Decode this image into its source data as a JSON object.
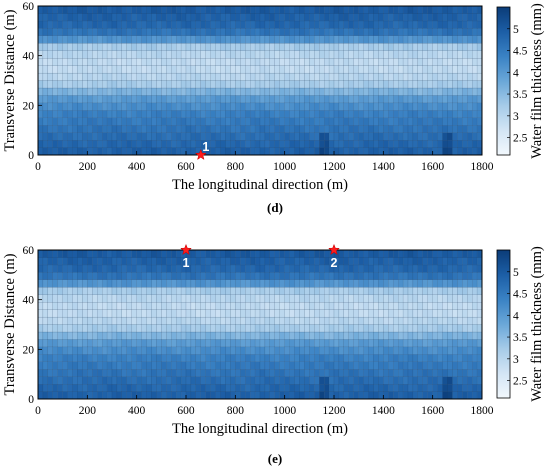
{
  "chart_data": [
    {
      "type": "heatmap",
      "panel_label": "(d)",
      "xlabel": "The longitudinal direction (m)",
      "ylabel": "Transverse  Distance (m)",
      "xlim": [
        0,
        1800
      ],
      "ylim": [
        0,
        60
      ],
      "xticks": [
        0,
        200,
        400,
        600,
        800,
        1000,
        1200,
        1400,
        1600,
        1800
      ],
      "yticks": [
        0,
        20,
        40,
        60
      ],
      "colorbar": {
        "label": "Water film thickness (mm)",
        "range": [
          2.1,
          5.5
        ],
        "ticks": [
          2.5,
          3,
          3.5,
          4,
          4.5,
          5
        ],
        "tick_labels": [
          "2.5",
          "3",
          "3.5",
          "4",
          "4.5",
          "5"
        ],
        "colormap": [
          "#f2f8fd",
          "#d3e5f5",
          "#a6cbe8",
          "#6aa7d8",
          "#3a82c4",
          "#1c5ea6",
          "#0b3c78"
        ]
      },
      "transverse_profile_mm": {
        "y": [
          1.5,
          4.5,
          7.5,
          10.5,
          13.5,
          16.5,
          19.5,
          22.5,
          25.5,
          28.5,
          31.5,
          34.5,
          37.5,
          40.5,
          43.5,
          46.5,
          49.5,
          52.5,
          55.5,
          58.5
        ],
        "value": [
          4.9,
          4.8,
          4.7,
          4.6,
          4.5,
          4.4,
          4.2,
          4.0,
          3.6,
          3.2,
          3.0,
          2.9,
          2.9,
          3.0,
          3.2,
          4.1,
          4.6,
          4.8,
          4.9,
          5.0
        ]
      },
      "markers": [
        {
          "label": "1",
          "x": 660,
          "y": 0
        }
      ]
    },
    {
      "type": "heatmap",
      "panel_label": "(e)",
      "xlabel": "The longitudinal direction (m)",
      "ylabel": "Transverse  Distance (m)",
      "xlim": [
        0,
        1800
      ],
      "ylim": [
        0,
        60
      ],
      "xticks": [
        0,
        200,
        400,
        600,
        800,
        1000,
        1200,
        1400,
        1600,
        1800
      ],
      "yticks": [
        0,
        20,
        40,
        60
      ],
      "colorbar": {
        "label": "Water film thickness (mm)",
        "range": [
          2.1,
          5.5
        ],
        "ticks": [
          2.5,
          3,
          3.5,
          4,
          4.5,
          5
        ],
        "tick_labels": [
          "2.5",
          "3",
          "3.5",
          "4",
          "4.5",
          "5"
        ],
        "colormap": [
          "#f2f8fd",
          "#d3e5f5",
          "#a6cbe8",
          "#6aa7d8",
          "#3a82c4",
          "#1c5ea6",
          "#0b3c78"
        ]
      },
      "transverse_profile_mm": {
        "y": [
          1.5,
          4.5,
          7.5,
          10.5,
          13.5,
          16.5,
          19.5,
          22.5,
          25.5,
          28.5,
          31.5,
          34.5,
          37.5,
          40.5,
          43.5,
          46.5,
          49.5,
          52.5,
          55.5,
          58.5
        ],
        "value": [
          4.9,
          4.8,
          4.7,
          4.6,
          4.5,
          4.4,
          4.2,
          4.0,
          3.6,
          3.2,
          3.0,
          2.9,
          2.9,
          3.0,
          3.2,
          4.1,
          4.6,
          4.8,
          4.9,
          5.0
        ]
      },
      "markers": [
        {
          "label": "1",
          "x": 600,
          "y": 60
        },
        {
          "label": "2",
          "x": 1200,
          "y": 60
        }
      ]
    }
  ]
}
